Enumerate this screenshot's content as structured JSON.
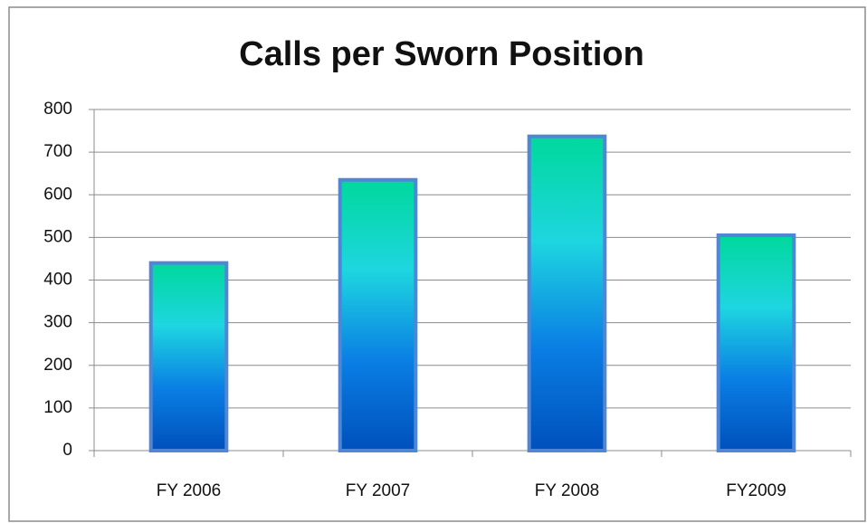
{
  "chart_data": {
    "type": "bar",
    "title": "Calls per Sworn Position",
    "categories": [
      "FY 2006",
      "FY 2007",
      "FY 2008",
      "FY2009"
    ],
    "values": [
      440,
      635,
      737,
      505
    ],
    "color": [
      "#00d89c",
      "#1ed6e0",
      "#0a7fe4",
      "#0050bc"
    ],
    "edge_color": "#4f86d6",
    "ylim": [
      0,
      800
    ],
    "yticks": [
      0,
      100,
      200,
      300,
      400,
      500,
      600,
      700,
      800
    ],
    "grid": true
  }
}
